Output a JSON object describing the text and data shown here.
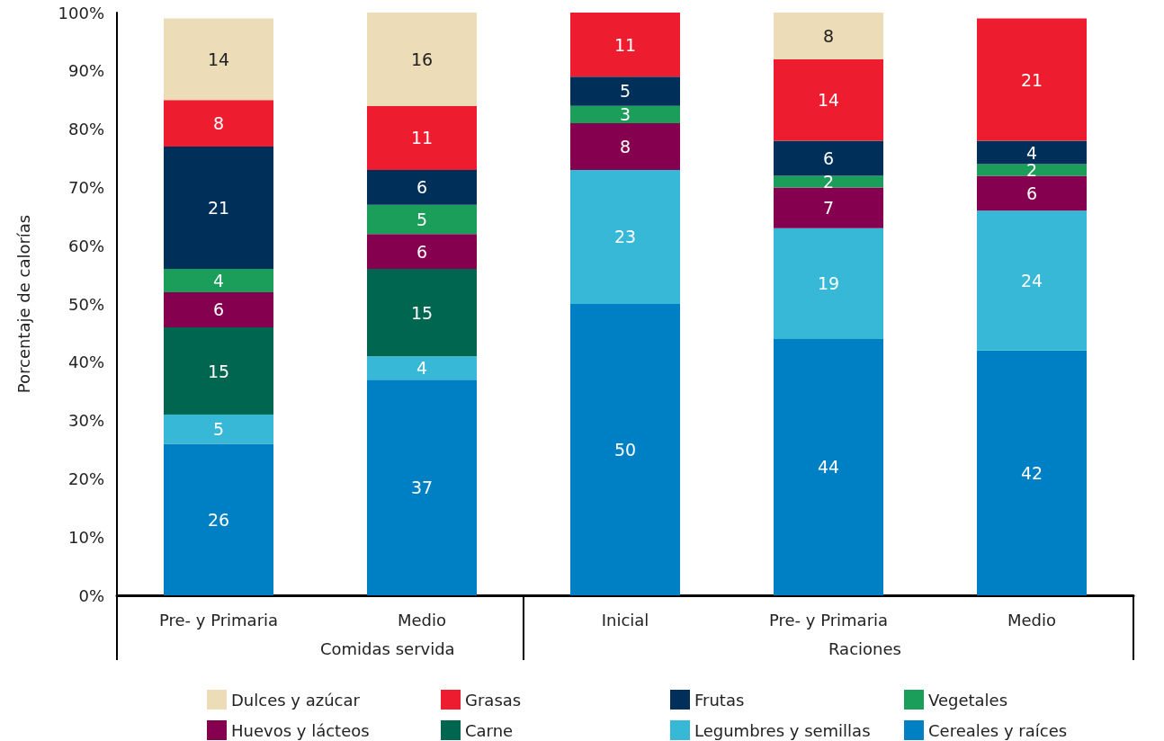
{
  "chart_data": {
    "type": "bar",
    "stacked": true,
    "ylabel": "Porcentaje de calorías",
    "categories": [
      "Pre- y Primaria",
      "Medio",
      "Inicial",
      "Pre- y Primaria",
      "Medio"
    ],
    "series": [
      {
        "name": "Cereales y raíces",
        "color": "#0080c4",
        "values": [
          26,
          37,
          50,
          44,
          42
        ]
      },
      {
        "name": "Legumbres y semillas",
        "color": "#36b8d6",
        "values": [
          5,
          4,
          23,
          19,
          24
        ]
      },
      {
        "name": "Carne",
        "color": "#006650",
        "values": [
          15,
          15,
          null,
          null,
          null
        ]
      },
      {
        "name": "Huevos y lácteos",
        "color": "#85004f",
        "values": [
          6,
          6,
          8,
          7,
          6
        ]
      },
      {
        "name": "Vegetales",
        "color": "#1a9e5a",
        "values": [
          4,
          5,
          3,
          2,
          2
        ]
      },
      {
        "name": "Frutas",
        "color": "#002f5a",
        "values": [
          21,
          6,
          5,
          6,
          4
        ]
      },
      {
        "name": "Grasas",
        "color": "#ed1c2e",
        "values": [
          8,
          11,
          11,
          14,
          21
        ]
      },
      {
        "name": "Dulces y azúcar",
        "color": "#ecdcb8",
        "values": [
          14,
          16,
          null,
          8,
          null
        ]
      }
    ],
    "ylim": [
      0,
      100
    ],
    "yticks": [
      {
        "value": 0,
        "label": "0%"
      },
      {
        "value": 10,
        "label": "10%"
      },
      {
        "value": 20,
        "label": "20%"
      },
      {
        "value": 30,
        "label": "30%"
      },
      {
        "value": 40,
        "label": "40%"
      },
      {
        "value": 50,
        "label": "50%"
      },
      {
        "value": 60,
        "label": "60%"
      },
      {
        "value": 70,
        "label": "70%"
      },
      {
        "value": 80,
        "label": "80%"
      },
      {
        "value": 90,
        "label": "90%"
      },
      {
        "value": 100,
        "label": "100%"
      }
    ],
    "annotations": [
      "Comidas servida",
      "Raciones"
    ],
    "data_labels": true,
    "grid": false,
    "legend": "bottom"
  }
}
